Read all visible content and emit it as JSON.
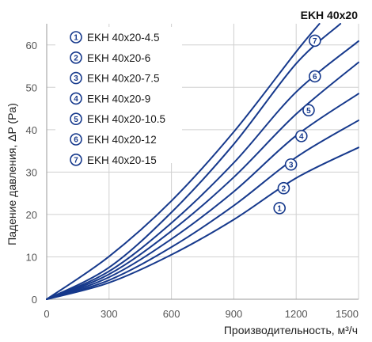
{
  "chart_data": {
    "type": "line",
    "title": "EKH 40x20",
    "xlabel": "Производительность, м³/ч",
    "ylabel": "Падение давления, ΔP (Pa)",
    "xlim": [
      0,
      1500
    ],
    "ylim": [
      0,
      65
    ],
    "xticks": [
      "0",
      "300",
      "600",
      "900",
      "1200",
      "1500"
    ],
    "yticks": [
      "0",
      "10",
      "20",
      "30",
      "40",
      "50",
      "60"
    ],
    "grid": true,
    "legend_position": "top-left",
    "line_color": "#16398c",
    "series": [
      {
        "marker": "1",
        "name": "EKH 40x20-4.5",
        "points": [
          [
            0,
            0
          ],
          [
            300,
            3.9
          ],
          [
            600,
            10.5
          ],
          [
            900,
            18.8
          ],
          [
            1200,
            28.6
          ],
          [
            1500,
            35.8
          ]
        ]
      },
      {
        "marker": "2",
        "name": "EKH 40x20-6",
        "points": [
          [
            0,
            0
          ],
          [
            300,
            4.5
          ],
          [
            600,
            12.3
          ],
          [
            900,
            22.1
          ],
          [
            1200,
            33.5
          ],
          [
            1500,
            42.2
          ]
        ]
      },
      {
        "marker": "3",
        "name": "EKH 40x20-7.5",
        "points": [
          [
            0,
            0
          ],
          [
            300,
            5.2
          ],
          [
            600,
            14.2
          ],
          [
            900,
            25.4
          ],
          [
            1200,
            38.6
          ],
          [
            1500,
            48.5
          ]
        ]
      },
      {
        "marker": "4",
        "name": "EKH 40x20-9",
        "points": [
          [
            0,
            0
          ],
          [
            300,
            5.9
          ],
          [
            600,
            16.1
          ],
          [
            900,
            28.8
          ],
          [
            1200,
            43.7
          ],
          [
            1500,
            55.9
          ]
        ]
      },
      {
        "marker": "5",
        "name": "EKH 40x20-10.5",
        "points": [
          [
            0,
            0
          ],
          [
            300,
            6.6
          ],
          [
            600,
            18.0
          ],
          [
            900,
            32.2
          ],
          [
            1200,
            48.9
          ],
          [
            1500,
            60.9
          ]
        ]
      },
      {
        "marker": "6",
        "name": "EKH 40x20-12",
        "points": [
          [
            0,
            0
          ],
          [
            300,
            7.5
          ],
          [
            600,
            20.5
          ],
          [
            900,
            36.6
          ],
          [
            1200,
            55.6
          ],
          [
            1413,
            65
          ]
        ]
      },
      {
        "marker": "7",
        "name": "EKH 40x20-15",
        "points": [
          [
            0,
            0
          ],
          [
            300,
            10.1
          ],
          [
            600,
            23.2
          ],
          [
            900,
            39.5
          ],
          [
            1200,
            58.4
          ],
          [
            1312,
            65
          ]
        ]
      }
    ],
    "markers": [
      {
        "label": "1",
        "x": 1120,
        "y": 21.5
      },
      {
        "label": "2",
        "x": 1140,
        "y": 26.2
      },
      {
        "label": "3",
        "x": 1175,
        "y": 31.8
      },
      {
        "label": "4",
        "x": 1225,
        "y": 38.5
      },
      {
        "label": "5",
        "x": 1260,
        "y": 44.6
      },
      {
        "label": "6",
        "x": 1290,
        "y": 52.6
      },
      {
        "label": "7",
        "x": 1290,
        "y": 61.0
      }
    ]
  }
}
